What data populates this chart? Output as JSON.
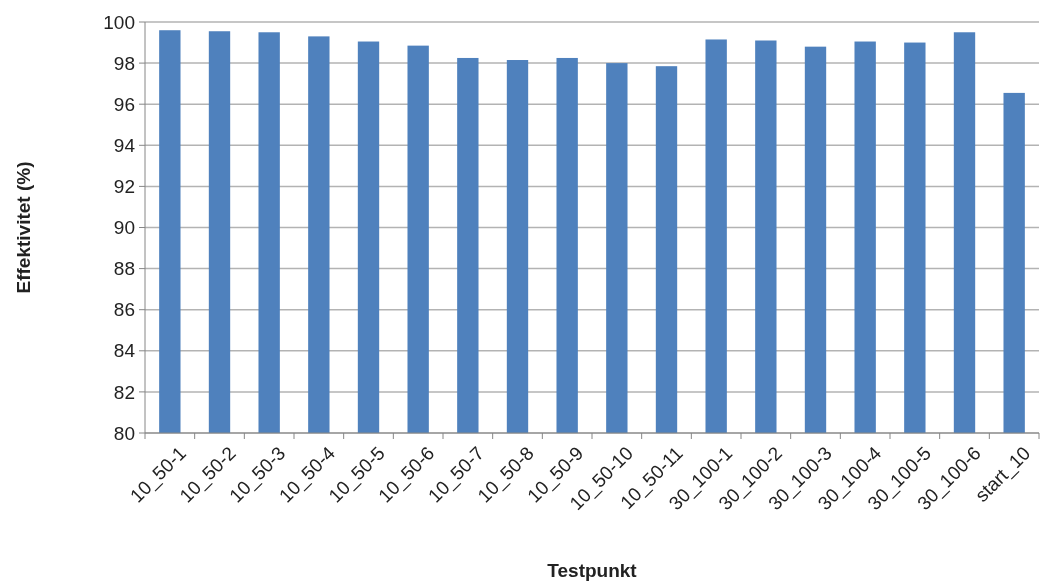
{
  "chart_data": {
    "type": "bar",
    "xlabel": "Testpunkt",
    "ylabel": "Effektivitet (%)",
    "categories": [
      "10_50-1",
      "10_50-2",
      "10_50-3",
      "10_50-4",
      "10_50-5",
      "10_50-6",
      "10_50-7",
      "10_50-8",
      "10_50-9",
      "10_50-10",
      "10_50-11",
      "30_100-1",
      "30_100-2",
      "30_100-3",
      "30_100-4",
      "30_100-5",
      "30_100-6",
      "start_10"
    ],
    "values": [
      99.6,
      99.55,
      99.5,
      99.3,
      99.05,
      98.85,
      98.25,
      98.15,
      98.25,
      98.0,
      97.85,
      99.15,
      99.1,
      98.8,
      99.05,
      99.0,
      99.5,
      96.55
    ],
    "color": "#4f81bd",
    "ylim": [
      80,
      100
    ],
    "yticks": [
      80,
      82,
      84,
      86,
      88,
      90,
      92,
      94,
      96,
      98,
      100
    ],
    "grid": "y"
  }
}
